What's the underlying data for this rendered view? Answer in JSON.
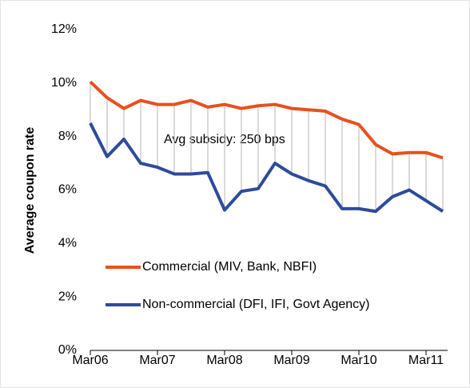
{
  "chart_data": {
    "type": "line",
    "y_label": "Average coupon rate",
    "annotation": "Avg subsidy: 250 bps",
    "categories": [
      "Mar06",
      null,
      null,
      null,
      "Mar07",
      null,
      null,
      null,
      "Mar08",
      null,
      null,
      null,
      "Mar09",
      null,
      null,
      null,
      "Mar10",
      null,
      null,
      null,
      "Mar11",
      null
    ],
    "series": [
      {
        "name": "Commercial (MIV, Bank, NBFI)",
        "color": "#e8501f",
        "values": [
          10.05,
          9.45,
          9.05,
          9.35,
          9.2,
          9.2,
          9.35,
          9.1,
          9.2,
          9.05,
          9.15,
          9.2,
          9.05,
          9.0,
          8.95,
          8.65,
          8.45,
          7.7,
          7.35,
          7.4,
          7.4,
          7.2
        ]
      },
      {
        "name": "Non-commercial (DFI, IFI, Govt Agency)",
        "color": "#2e4b9b",
        "values": [
          8.5,
          7.25,
          7.9,
          7.0,
          6.85,
          6.6,
          6.6,
          6.65,
          5.25,
          5.95,
          6.05,
          7.0,
          6.6,
          6.35,
          6.15,
          5.3,
          5.3,
          5.2,
          5.75,
          6.0,
          5.6,
          5.2
        ]
      }
    ],
    "ylim": [
      0,
      12
    ],
    "yticks": [
      {
        "value": 0,
        "label": "0%"
      },
      {
        "value": 2,
        "label": "2%"
      },
      {
        "value": 4,
        "label": "4%"
      },
      {
        "value": 6,
        "label": "6%"
      },
      {
        "value": 8,
        "label": "8%"
      },
      {
        "value": 10,
        "label": "10%"
      },
      {
        "value": 12,
        "label": "12%"
      }
    ],
    "connectors": true,
    "legend": "bottom-left"
  }
}
